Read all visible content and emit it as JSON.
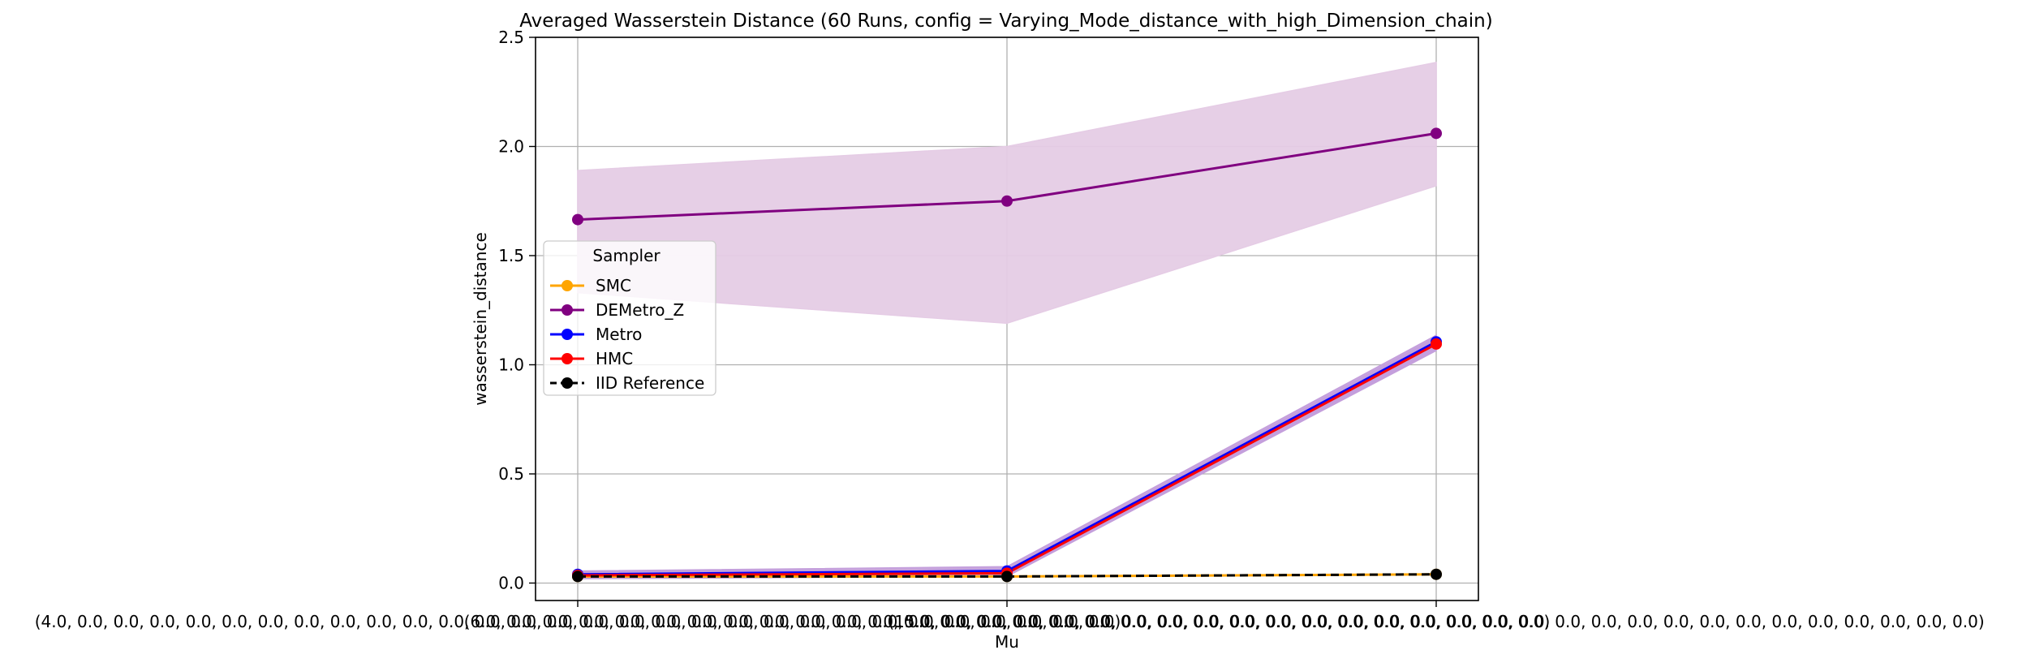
{
  "chart_data": {
    "type": "line",
    "title": "Averaged Wasserstein Distance (60 Runs, config = Varying_Mode_distance_with_high_Dimension_chain)",
    "xlabel": "Mu",
    "ylabel": "wasserstein_distance",
    "ylim": [
      -0.08,
      2.5
    ],
    "yticks": [
      0.0,
      0.5,
      1.0,
      1.5,
      2.0,
      2.5
    ],
    "ytick_labels": [
      "0.0",
      "0.5",
      "1.0",
      "1.5",
      "2.0",
      "2.5"
    ],
    "categories": [
      "(4.0, 0.0, 0.0, 0.0, 0.0, 0.0, 0.0, 0.0, 0.0, 0.0, 0.0, 0.0, 0.0, 0.0, 0.0, 0.0, 0.0, 0.0, 0.0, 0.0, 0.0, 0.0, 0.0, 0.0, 0.0, 0.0, 0.0, 0.0, 0.0, 0.0)",
      "(6.0, 0.0, 0.0, 0.0, 0.0, 0.0, 0.0, 0.0, 0.0, 0.0, 0.0, 0.0, 0.0, 0.0, 0.0, 0.0, 0.0, 0.0, 0.0, 0.0, 0.0, 0.0, 0.0, 0.0, 0.0, 0.0, 0.0, 0.0, 0.0, 0.0)",
      "(15.0, 0.0, 0.0, 0.0, 0.0, 0.0, 0.0, 0.0, 0.0, 0.0, 0.0, 0.0, 0.0, 0.0, 0.0, 0.0, 0.0, 0.0, 0.0, 0.0, 0.0, 0.0, 0.0, 0.0, 0.0, 0.0, 0.0, 0.0, 0.0, 0.0)"
    ],
    "grid": true,
    "legend": {
      "title": "Sampler",
      "placement": "center-left"
    },
    "series": [
      {
        "name": "SMC",
        "color": "#ffa500",
        "linestyle": "solid",
        "values": [
          0.03,
          0.03,
          0.04
        ]
      },
      {
        "name": "DEMetro_Z",
        "color": "#800080",
        "linestyle": "solid",
        "values": [
          1.665,
          1.75,
          2.06
        ],
        "band_lower": [
          1.33,
          1.19,
          1.82
        ],
        "band_upper": [
          1.89,
          2.0,
          2.385
        ],
        "band_color": "#e5cce5"
      },
      {
        "name": "Metro",
        "color": "#0000ff",
        "linestyle": "solid",
        "values": [
          0.04,
          0.055,
          1.105
        ],
        "band_lower": [
          0.025,
          0.035,
          1.07
        ],
        "band_upper": [
          0.055,
          0.075,
          1.135
        ],
        "band_color": "#c49fdc"
      },
      {
        "name": "HMC",
        "color": "#ff0000",
        "linestyle": "solid",
        "values": [
          0.035,
          0.045,
          1.095
        ],
        "band_lower": [
          0.02,
          0.03,
          1.065
        ],
        "band_upper": [
          0.05,
          0.06,
          1.125
        ],
        "band_color": "#c49fdc"
      },
      {
        "name": "IID Reference",
        "color": "#000000",
        "linestyle": "dashed",
        "values": [
          0.03,
          0.03,
          0.04
        ]
      }
    ]
  }
}
